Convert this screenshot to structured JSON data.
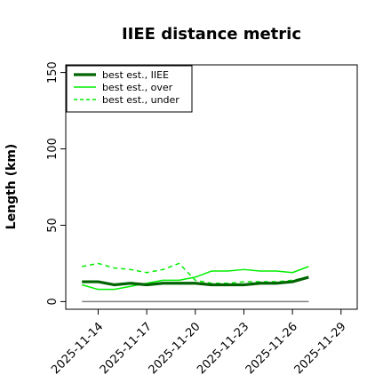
{
  "chart_data": {
    "type": "line",
    "title": "IIEE distance metric",
    "xlabel": "",
    "ylabel": "Length (km)",
    "xlim": [
      "2025-11-12",
      "2025-11-30"
    ],
    "ylim": [
      -5,
      155
    ],
    "yticks": [
      0,
      50,
      100,
      150
    ],
    "xticks": [
      "2025-11-14",
      "2025-11-17",
      "2025-11-20",
      "2025-11-23",
      "2025-11-26",
      "2025-11-29"
    ],
    "grid": false,
    "legend_position": "top-left",
    "x": [
      "2025-11-13",
      "2025-11-14",
      "2025-11-15",
      "2025-11-16",
      "2025-11-17",
      "2025-11-18",
      "2025-11-19",
      "2025-11-20",
      "2025-11-21",
      "2025-11-22",
      "2025-11-23",
      "2025-11-24",
      "2025-11-25",
      "2025-11-26",
      "2025-11-27"
    ],
    "series": [
      {
        "name": "best est., IIEE",
        "color": "#006400",
        "style": "solid-thick",
        "values": [
          13,
          13,
          11,
          12,
          11,
          12,
          12,
          12,
          11,
          11,
          11,
          12,
          12,
          13,
          16
        ]
      },
      {
        "name": "best est., over",
        "color": "#00ee00",
        "style": "solid",
        "values": [
          11,
          8,
          8,
          10,
          12,
          14,
          14,
          16,
          20,
          20,
          21,
          20,
          20,
          19,
          23
        ]
      },
      {
        "name": "best est., under",
        "color": "#00ee00",
        "style": "dashed",
        "values": [
          23,
          25,
          22,
          21,
          19,
          21,
          25,
          14,
          12,
          12,
          13,
          13,
          13,
          14,
          16
        ]
      },
      {
        "color": "#808080",
        "style": "reference",
        "values": [
          0,
          0,
          0,
          0,
          0,
          0,
          0,
          0,
          0,
          0,
          0,
          0,
          0,
          0,
          0
        ]
      }
    ]
  }
}
